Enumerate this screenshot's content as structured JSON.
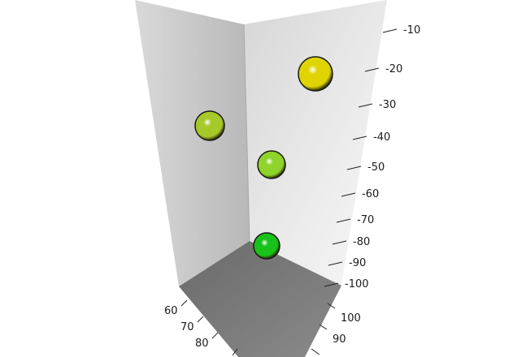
{
  "chart_data": {
    "type": "scatter3d",
    "title": "",
    "axes": {
      "z": {
        "label": "",
        "ticks": [
          -10,
          -20,
          -30,
          -40,
          -50,
          -60,
          -70,
          -80,
          -90,
          -100
        ],
        "tick_labels": [
          "-10",
          "-20",
          "-30",
          "-40",
          "-50",
          "-60",
          "-70",
          "-80",
          "-90",
          "-100"
        ]
      },
      "x": {
        "label": "",
        "ticks": [
          60,
          70,
          80
        ],
        "tick_labels": [
          "60",
          "70",
          "80"
        ]
      },
      "y": {
        "label": "",
        "ticks": [
          100,
          90
        ],
        "tick_labels": [
          "100",
          "90"
        ]
      }
    },
    "points": [
      {
        "z": -22,
        "color": "#e0d400"
      },
      {
        "z": -45,
        "color": "#a6c92a"
      },
      {
        "z": -50,
        "color": "#8ed42a"
      },
      {
        "z": -85,
        "color": "#19c219"
      }
    ],
    "colors": {
      "left_wall": "#cfcfcf",
      "right_wall": "#e6e6e6",
      "floor": "#7a7a7a"
    }
  }
}
